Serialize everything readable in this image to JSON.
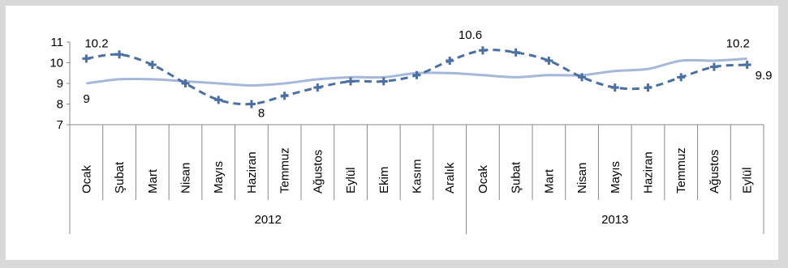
{
  "chart_data": {
    "type": "line",
    "title": "",
    "xlabel": "",
    "ylabel": "",
    "ylim": [
      7,
      11
    ],
    "yticks": [
      7,
      8,
      9,
      10,
      11
    ],
    "grid": false,
    "legend": "none",
    "categories": [
      "Ocak",
      "Şubat",
      "Mart",
      "Nisan",
      "Mayıs",
      "Haziran",
      "Temmuz",
      "Ağustos",
      "Eylül",
      "Ekim",
      "Kasım",
      "Aralık",
      "Ocak",
      "Şubat",
      "Mart",
      "Nisan",
      "Mayıs",
      "Haziran",
      "Temmuz",
      "Ağustos",
      "Eylül"
    ],
    "groups": [
      {
        "label": "2012",
        "count": 12
      },
      {
        "label": "2013",
        "count": 9
      }
    ],
    "series": [
      {
        "style": "dashed-markers",
        "color": "#4a6fa5",
        "values": [
          10.2,
          10.4,
          9.9,
          9.0,
          8.2,
          8.0,
          8.4,
          8.8,
          9.1,
          9.1,
          9.4,
          10.1,
          10.6,
          10.5,
          10.1,
          9.3,
          8.8,
          8.8,
          9.3,
          9.8,
          9.9
        ]
      },
      {
        "style": "solid",
        "color": "#a5b8d9",
        "values": [
          9.0,
          9.2,
          9.2,
          9.1,
          9.0,
          8.9,
          9.0,
          9.2,
          9.3,
          9.3,
          9.5,
          9.5,
          9.4,
          9.3,
          9.4,
          9.4,
          9.6,
          9.7,
          10.1,
          10.1,
          10.2
        ]
      }
    ],
    "data_labels": [
      {
        "series": 0,
        "index": 0,
        "text": "10.2"
      },
      {
        "series": 1,
        "index": 0,
        "text": "9"
      },
      {
        "series": 0,
        "index": 5,
        "text": "8"
      },
      {
        "series": 0,
        "index": 12,
        "text": "10.6"
      },
      {
        "series": 1,
        "index": 20,
        "text": "10.2"
      },
      {
        "series": 0,
        "index": 20,
        "text": "9.9"
      }
    ]
  }
}
